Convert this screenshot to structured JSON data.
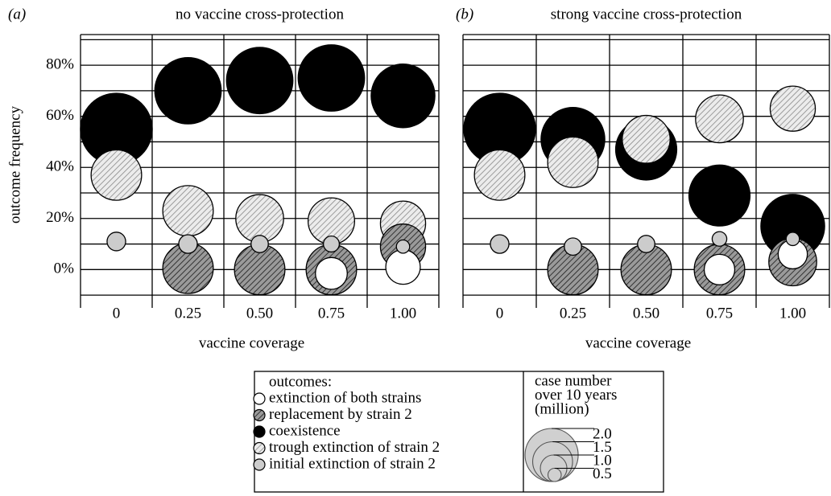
{
  "chart_data": [
    {
      "type": "bubble",
      "panel_label": "(a)",
      "title": "no vaccine cross-protection",
      "xlabel": "vaccine coverage",
      "ylabel": "outcome frequency",
      "categories": [
        "0",
        "0.25",
        "0.50",
        "0.75",
        "1.00"
      ],
      "ylim": [
        -15,
        92
      ],
      "yticks": [
        {
          "value": 0,
          "label": "0%"
        },
        {
          "value": 20,
          "label": "20%"
        },
        {
          "value": 40,
          "label": "40%"
        },
        {
          "value": 60,
          "label": "60%"
        },
        {
          "value": 80,
          "label": "80%"
        }
      ],
      "ygrid": [
        -10,
        0,
        10,
        20,
        30,
        40,
        50,
        60,
        70,
        80,
        90
      ],
      "series": [
        {
          "name": "extinction of both strains",
          "color": "#ffffff",
          "hatch": false,
          "values": [
            null,
            null,
            null,
            -1.5,
            1
          ],
          "sizes": [
            null,
            null,
            null,
            1.2,
            1.3
          ]
        },
        {
          "name": "replacement by strain 2",
          "color": "#9a9a9a",
          "hatch": true,
          "values": [
            null,
            0.5,
            0,
            0,
            9
          ],
          "sizes": [
            null,
            1.9,
            1.9,
            1.9,
            1.7
          ]
        },
        {
          "name": "coexistence",
          "color": "#000000",
          "hatch": false,
          "values": [
            55,
            70,
            74,
            75,
            68
          ],
          "sizes": [
            2.7,
            2.5,
            2.5,
            2.5,
            2.4
          ]
        },
        {
          "name": "trough extinction of strain 2",
          "color": "#e4e4e4",
          "hatch": true,
          "values": [
            37,
            23,
            20,
            19,
            18
          ],
          "sizes": [
            1.9,
            1.9,
            1.8,
            1.75,
            1.7
          ]
        },
        {
          "name": "initial extinction of strain 2",
          "color": "#cccccc",
          "hatch": false,
          "values": [
            11,
            10,
            10,
            10,
            9
          ],
          "sizes": [
            0.7,
            0.7,
            0.65,
            0.6,
            0.5
          ]
        }
      ],
      "legend_title": "outcomes:",
      "size_legend": {
        "title": [
          "case number",
          "over 10 years",
          "(million)"
        ],
        "ticks": [
          {
            "value": 2,
            "label": "2.0"
          },
          1.5,
          {
            "value": 1,
            "label": "1.0"
          },
          0.5
        ]
      }
    },
    {
      "type": "bubble",
      "panel_label": "(b)",
      "title": "strong vaccine cross-protection",
      "xlabel": "vaccine coverage",
      "categories": [
        "0",
        "0.25",
        "0.50",
        "0.75",
        "1.00"
      ],
      "ylim": [
        -15,
        92
      ],
      "ygrid": [
        -10,
        0,
        10,
        20,
        30,
        40,
        50,
        60,
        70,
        80,
        90
      ],
      "series": [
        {
          "name": "extinction of both strains",
          "color": "#ffffff",
          "hatch": false,
          "values": [
            null,
            null,
            null,
            0,
            6
          ],
          "sizes": [
            null,
            null,
            null,
            1.15,
            1.1
          ]
        },
        {
          "name": "replacement by strain 2",
          "color": "#9a9a9a",
          "hatch": true,
          "values": [
            null,
            0,
            0,
            0,
            3
          ],
          "sizes": [
            null,
            1.9,
            1.9,
            1.9,
            1.8
          ]
        },
        {
          "name": "coexistence",
          "color": "#000000",
          "hatch": false,
          "values": [
            55,
            51,
            47,
            29,
            17
          ],
          "sizes": [
            2.7,
            2.4,
            2.3,
            2.3,
            2.4
          ]
        },
        {
          "name": "trough extinction of strain 2",
          "color": "#e4e4e4",
          "hatch": true,
          "values": [
            37,
            42,
            51,
            59,
            63
          ],
          "sizes": [
            1.9,
            1.9,
            1.8,
            1.8,
            1.7
          ]
        },
        {
          "name": "initial extinction of strain 2",
          "color": "#cccccc",
          "hatch": false,
          "values": [
            10,
            9,
            10,
            12,
            12
          ],
          "sizes": [
            0.7,
            0.65,
            0.65,
            0.55,
            0.5
          ]
        }
      ]
    }
  ]
}
